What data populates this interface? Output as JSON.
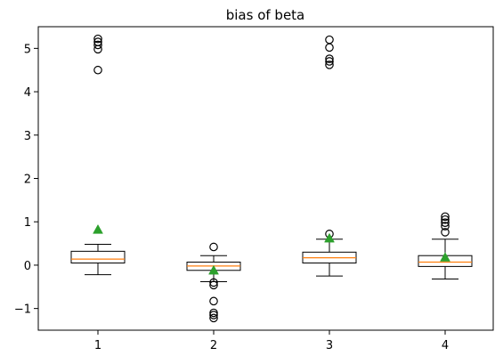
{
  "chart_data": {
    "type": "boxplot",
    "title": "bias of beta",
    "xlabel": "",
    "ylabel": "",
    "categories": [
      "1",
      "2",
      "3",
      "4"
    ],
    "ylim": [
      -1.5,
      5.5
    ],
    "yticks": [
      -1,
      0,
      1,
      2,
      3,
      4,
      5
    ],
    "ytick_labels": [
      "−1",
      "0",
      "1",
      "2",
      "3",
      "4",
      "5"
    ],
    "grid": false,
    "legend": "none",
    "boxes": [
      {
        "category": "1",
        "whislo": -0.22,
        "q1": 0.05,
        "med": 0.14,
        "q3": 0.32,
        "whishi": 0.48,
        "mean": 0.82,
        "fliers": [
          4.5,
          4.98,
          5.08,
          5.15,
          5.22
        ]
      },
      {
        "category": "2",
        "whislo": -0.38,
        "q1": -0.12,
        "med": -0.02,
        "q3": 0.07,
        "whishi": 0.22,
        "mean": -0.12,
        "fliers": [
          0.42,
          -0.4,
          -0.46,
          -0.83,
          -1.1,
          -1.15,
          -1.22
        ]
      },
      {
        "category": "3",
        "whislo": -0.25,
        "q1": 0.05,
        "med": 0.17,
        "q3": 0.3,
        "whishi": 0.6,
        "mean": 0.62,
        "fliers": [
          0.72,
          4.62,
          4.7,
          4.76,
          5.02,
          5.2
        ]
      },
      {
        "category": "4",
        "whislo": -0.32,
        "q1": -0.03,
        "med": 0.07,
        "q3": 0.22,
        "whishi": 0.6,
        "mean": 0.18,
        "fliers": [
          0.76,
          0.9,
          0.98,
          1.05,
          1.12
        ]
      }
    ],
    "colors": {
      "box": "#000000",
      "median": "#ff7f0e",
      "mean_marker": "#2ca02c",
      "flier": "#000000"
    }
  }
}
